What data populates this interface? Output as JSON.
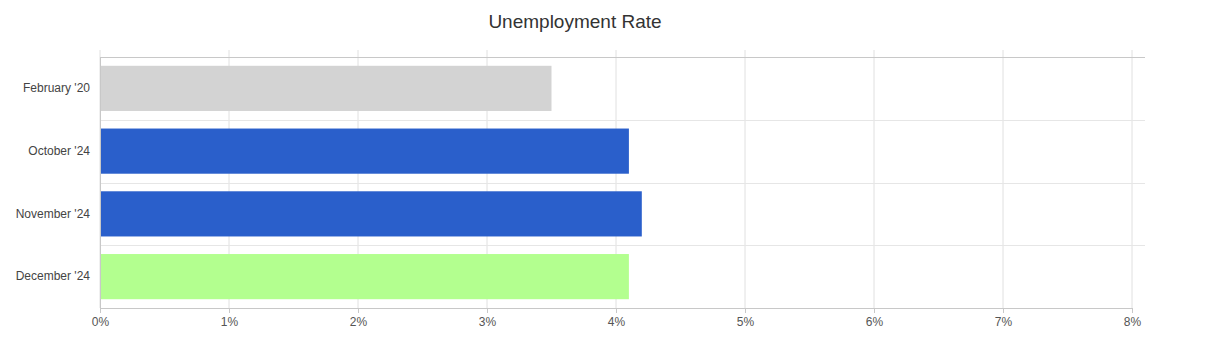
{
  "chart_data": {
    "type": "bar",
    "title": "Unemployment Rate",
    "orientation": "horizontal",
    "categories": [
      "February '20",
      "October '24",
      "November '24",
      "December '24"
    ],
    "values": [
      3.5,
      4.1,
      4.2,
      4.1
    ],
    "colors": [
      "#d3d3d3",
      "#2a5fcb",
      "#2a5fcb",
      "#b3ff8f"
    ],
    "xlim": [
      0,
      8
    ],
    "xticks": [
      {
        "value": 0,
        "label": "0%"
      },
      {
        "value": 1,
        "label": "1%"
      },
      {
        "value": 2,
        "label": "2%"
      },
      {
        "value": 3,
        "label": "3%"
      },
      {
        "value": 4,
        "label": "4%"
      },
      {
        "value": 5,
        "label": "5%"
      },
      {
        "value": 6,
        "label": "6%"
      },
      {
        "value": 7,
        "label": "7%"
      },
      {
        "value": 8,
        "label": "8%"
      }
    ],
    "grid": true
  }
}
